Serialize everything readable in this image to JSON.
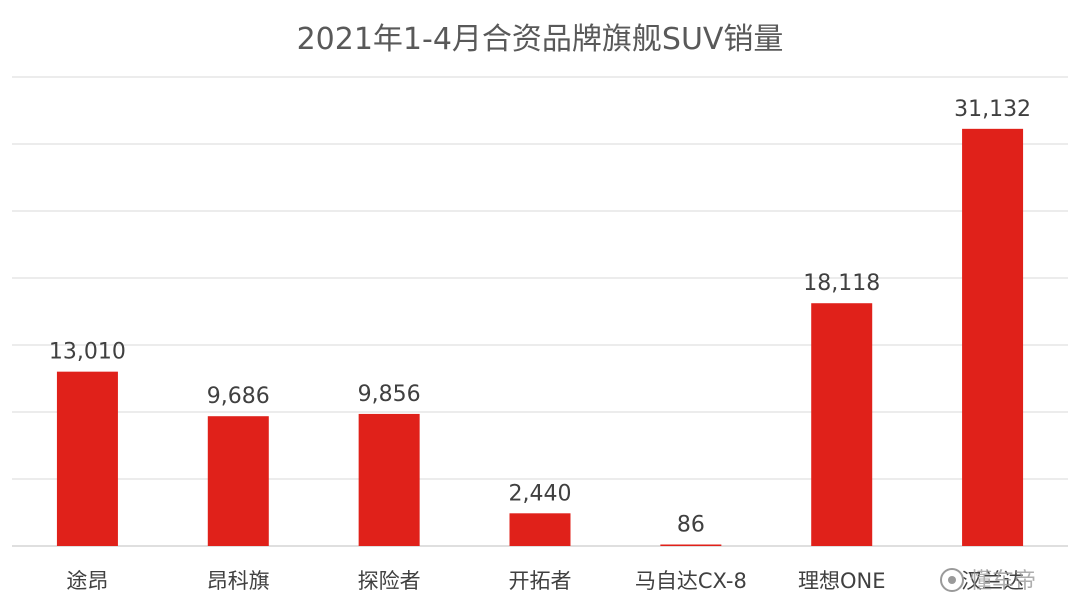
{
  "chart_data": {
    "type": "bar",
    "title": "2021年1-4月合资品牌旗舰SUV销量",
    "categories": [
      "途昂",
      "昂科旗",
      "探险者",
      "开拓者",
      "马自达CX-8",
      "理想ONE",
      "汉兰达"
    ],
    "values": [
      13010,
      9686,
      9856,
      2440,
      86,
      18118,
      31132
    ],
    "data_labels": [
      "13,010",
      "9,686",
      "9,856",
      "2,440",
      "86",
      "18,118",
      "31,132"
    ],
    "ylim": [
      0,
      35000
    ],
    "grid": true,
    "legend": "none",
    "bar_color": "#e0211a"
  },
  "watermark": {
    "text": "懂车帝"
  }
}
